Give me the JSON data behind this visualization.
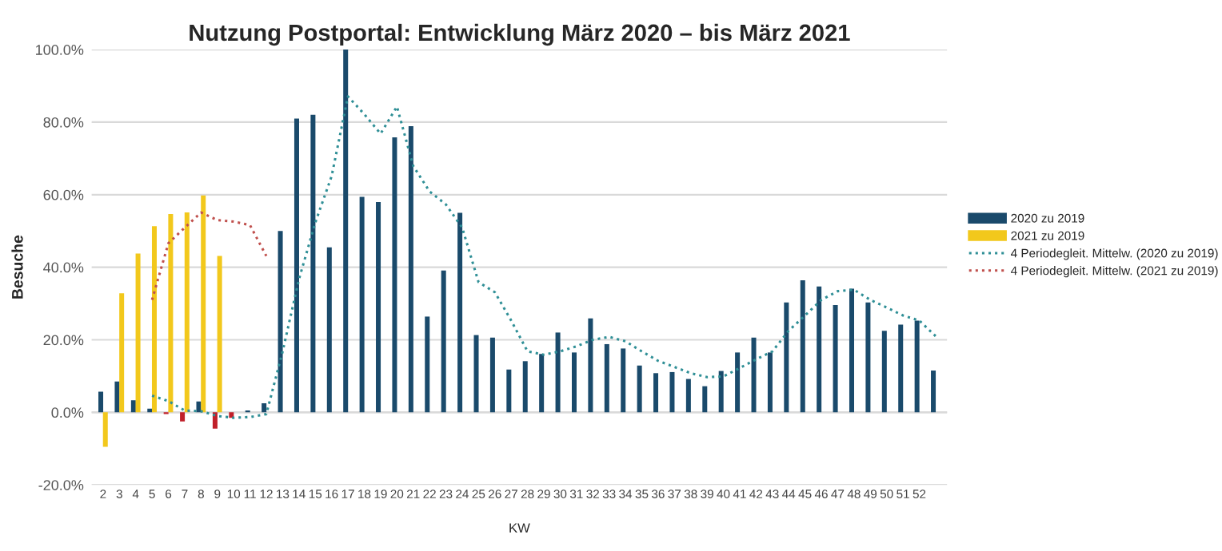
{
  "chart_data": {
    "type": "bar",
    "title": "Nutzung Postportal: Entwicklung März 2020 – bis März 2021",
    "xlabel": "KW",
    "ylabel": "Besuche",
    "categories": [
      "2",
      "3",
      "4",
      "5",
      "6",
      "7",
      "8",
      "9",
      "10",
      "11",
      "12",
      "13",
      "14",
      "15",
      "16",
      "17",
      "18",
      "19",
      "20",
      "21",
      "22",
      "23",
      "24",
      "25",
      "26",
      "27",
      "28",
      "29",
      "30",
      "31",
      "32",
      "33",
      "34",
      "35",
      "36",
      "37",
      "38",
      "39",
      "40",
      "41",
      "42",
      "43",
      "44",
      "45",
      "46",
      "47",
      "48",
      "49",
      "50",
      "51",
      "52",
      null
    ],
    "series": [
      {
        "name": "2020 zu 2019",
        "color": "#1a4a6b",
        "colors": [
          "#1a4a6b",
          "#1a4a6b",
          "#1a4a6b",
          "#1a4a6b",
          "#c0202a",
          "#c0202a",
          "#1a4a6b",
          "#c0202a",
          "#c0202a",
          "#1a4a6b",
          "#1a4a6b",
          "#1a4a6b",
          "#1a4a6b",
          "#1a4a6b",
          "#1a4a6b",
          "#1a4a6b",
          "#1a4a6b",
          "#1a4a6b",
          "#1a4a6b",
          "#1a4a6b",
          "#1a4a6b",
          "#1a4a6b",
          "#1a4a6b",
          "#1a4a6b",
          "#1a4a6b",
          "#1a4a6b",
          "#1a4a6b",
          "#1a4a6b",
          "#1a4a6b",
          "#1a4a6b",
          "#1a4a6b",
          "#1a4a6b",
          "#1a4a6b",
          "#1a4a6b",
          "#1a4a6b",
          "#1a4a6b",
          "#1a4a6b",
          "#1a4a6b",
          "#1a4a6b",
          "#1a4a6b",
          "#1a4a6b",
          "#1a4a6b",
          "#1a4a6b",
          "#1a4a6b",
          "#1a4a6b",
          "#1a4a6b",
          "#1a4a6b",
          "#1a4a6b",
          "#1a4a6b",
          "#1a4a6b",
          "#1a4a6b",
          "#1a4a6b"
        ],
        "values": [
          5.7,
          8.5,
          3.3,
          1,
          -0.5,
          -2.5,
          3,
          -4.5,
          -1.5,
          0.5,
          2.5,
          50,
          81,
          82,
          45.5,
          100,
          59.4,
          58,
          75.8,
          78.9,
          26.4,
          39.1,
          55,
          21.3,
          20.6,
          11.8,
          14.1,
          16.1,
          22,
          16.5,
          25.9,
          18.8,
          17.6,
          12.9,
          10.8,
          11.1,
          9.2,
          7.2,
          11.4,
          16.5,
          20.6,
          16.5,
          30.3,
          36.4,
          34.7,
          29.6,
          34.1,
          30.3,
          22.5,
          24.2,
          25.3,
          11.5
        ]
      },
      {
        "name": "2021 zu 2019",
        "color": "#f2c81c",
        "values": [
          -9.5,
          32.8,
          43.8,
          51.3,
          54.7,
          55.1,
          59.8,
          43.1,
          null,
          null,
          null,
          null,
          null,
          null,
          null,
          null,
          null,
          null,
          null,
          null,
          null,
          null,
          null,
          null,
          null,
          null,
          null,
          null,
          null,
          null,
          null,
          null,
          null,
          null,
          null,
          null,
          null,
          null,
          null,
          null,
          null,
          null,
          null,
          null,
          null,
          null,
          null,
          null,
          null,
          null,
          null,
          null
        ]
      },
      {
        "name": "4 Periodegleit. Mittelw. (2020 zu 2019)",
        "type": "line",
        "line_style": "dotted",
        "color": "#2f8f96",
        "values": [
          null,
          null,
          null,
          4.6,
          3.1,
          0.5,
          0.3,
          -1,
          -1.5,
          -1.3,
          -0.5,
          16.8,
          36.7,
          52.3,
          65.1,
          87.1,
          82.2,
          76.8,
          84.3,
          67.9,
          60.9,
          57.3,
          50.9,
          35.9,
          33.1,
          25.3,
          16.8,
          15.9,
          16.8,
          18.2,
          20,
          20.8,
          19.6,
          16.8,
          14.2,
          12.5,
          10.8,
          9.7,
          9.9,
          12.2,
          14.6,
          16.8,
          22.5,
          26.7,
          31,
          33.4,
          33.8,
          31,
          28.9,
          26.7,
          25.3,
          21
        ]
      },
      {
        "name": "4 Periodegleit. Mittelw. (2021 zu 2019)",
        "type": "line",
        "line_style": "dotted",
        "color": "#c0504d",
        "values": [
          null,
          null,
          null,
          31,
          46.6,
          50.9,
          55.1,
          53,
          52.6,
          51.6,
          43.1,
          null,
          null,
          null,
          null,
          null,
          null,
          null,
          null,
          null,
          null,
          null,
          null,
          null,
          null,
          null,
          null,
          null,
          null,
          null,
          null,
          null,
          null,
          null,
          null,
          null,
          null,
          null,
          null,
          null,
          null,
          null,
          null,
          null,
          null,
          null,
          null,
          null,
          null,
          null,
          null,
          null
        ]
      }
    ],
    "ylim": [
      -20,
      100
    ],
    "yticks": [
      {
        "value": -20,
        "label": "-20.0%"
      },
      {
        "value": 0,
        "label": "0.0%"
      },
      {
        "value": 20,
        "label": "20.0%"
      },
      {
        "value": 40,
        "label": "40.0%"
      },
      {
        "value": 60,
        "label": "60.0%"
      },
      {
        "value": 80,
        "label": "80.0%"
      },
      {
        "value": 100,
        "label": "100.0%"
      }
    ],
    "grid": "y",
    "legend": "right"
  }
}
